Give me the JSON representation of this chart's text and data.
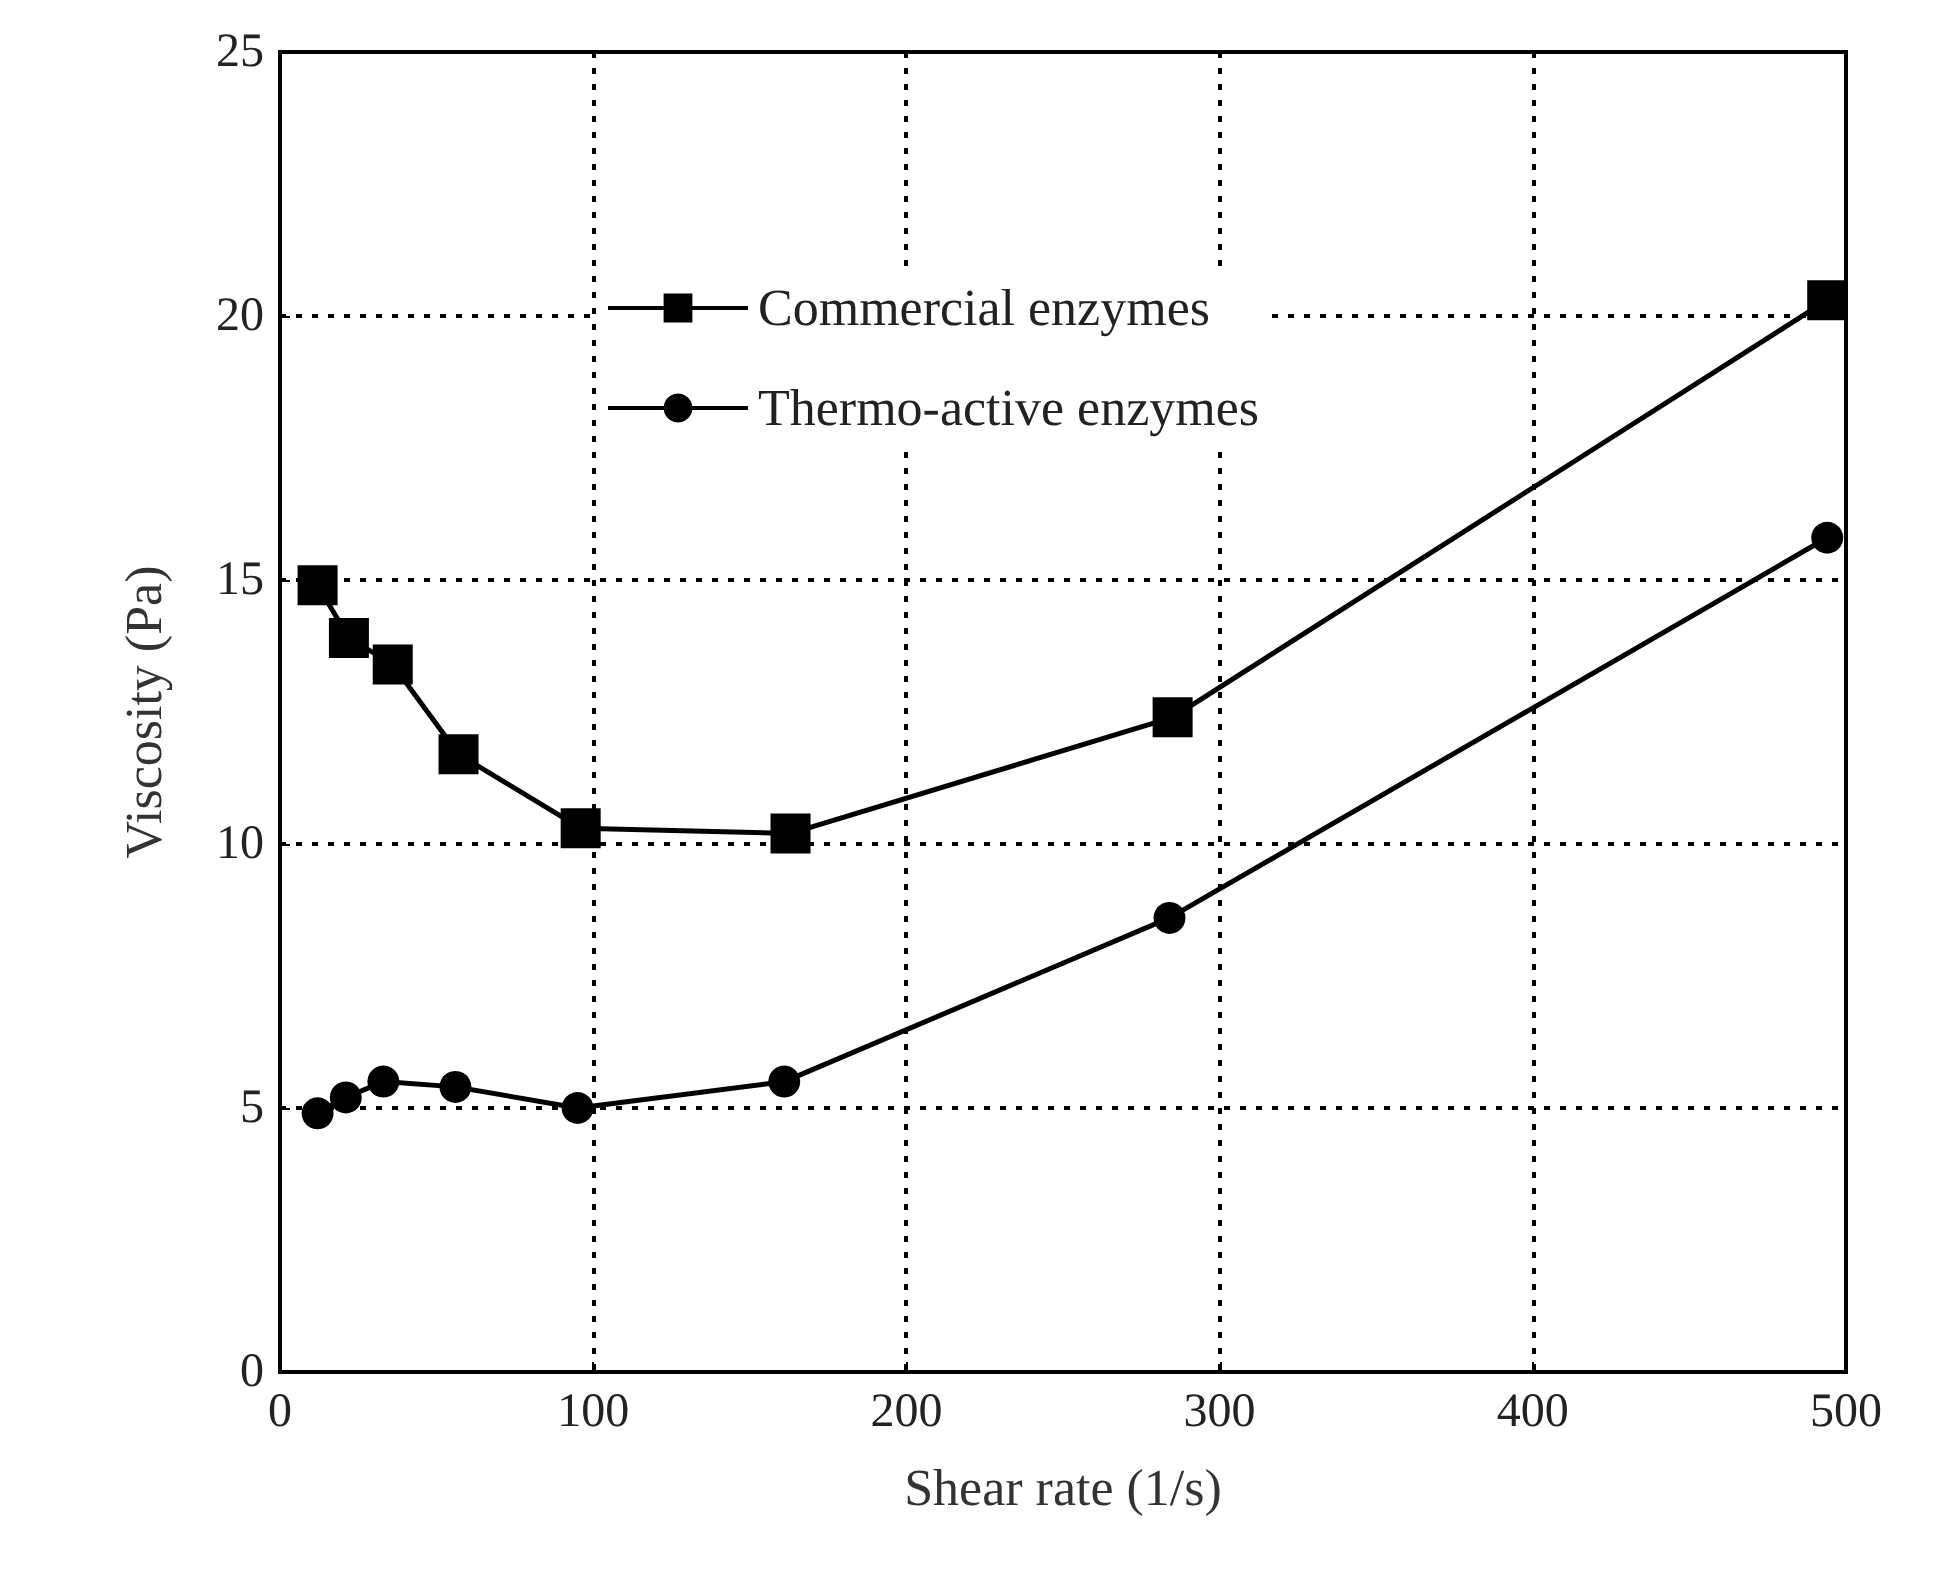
{
  "chart_data": {
    "type": "line",
    "xlabel": "Shear rate (1/s)",
    "ylabel": "Viscosity (Pa)",
    "xlim": [
      0,
      500
    ],
    "xticks": [
      0,
      100,
      200,
      300,
      400,
      500
    ],
    "ylim": [
      0,
      25
    ],
    "yticks": [
      0,
      5,
      10,
      15,
      20,
      25
    ],
    "grid": true,
    "legend": "top left",
    "line_style": "solid",
    "series": [
      {
        "name": "Commercial enzymes",
        "color": "#000000",
        "marker": "square",
        "x": [
          12,
          22,
          36,
          57,
          96,
          163,
          285,
          494
        ],
        "values": [
          14.9,
          13.9,
          13.4,
          11.7,
          10.3,
          10.2,
          12.4,
          20.3
        ]
      },
      {
        "name": "Thermo-active enzymes",
        "color": "#000000",
        "marker": "circle",
        "x": [
          12,
          21,
          33,
          56,
          95,
          161,
          284,
          494
        ],
        "values": [
          4.9,
          5.2,
          5.5,
          5.4,
          5.0,
          5.5,
          8.6,
          15.8
        ]
      }
    ]
  }
}
